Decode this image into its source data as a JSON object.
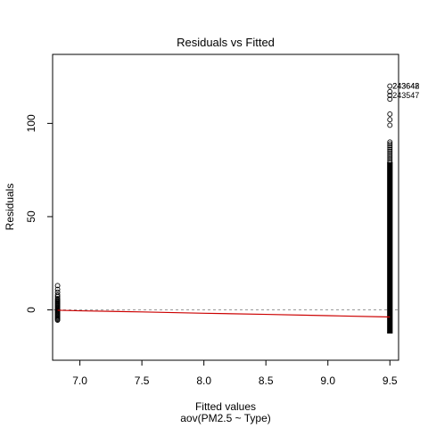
{
  "chart_data": {
    "type": "scatter",
    "title": "Residuals vs Fitted",
    "xlabel": "Fitted values",
    "sublabel": "aov(PM2.5 ~ Type)",
    "ylabel": "Residuals",
    "xlim": [
      6.78,
      9.57
    ],
    "ylim": [
      -27,
      137
    ],
    "x_ticks": [
      7.0,
      7.5,
      8.0,
      8.5,
      9.0,
      9.5
    ],
    "x_tick_labels": [
      "7.0",
      "7.5",
      "8.0",
      "8.5",
      "9.0",
      "9.5"
    ],
    "y_ticks": [
      0,
      50,
      100
    ],
    "y_tick_labels": [
      "0",
      "50",
      "100"
    ],
    "reference_line_y": 0,
    "groups": [
      {
        "fitted": 6.82,
        "residuals": [
          -5.5,
          -5,
          -4.5,
          -4,
          -3.5,
          -3,
          -2.5,
          -2,
          -1.5,
          -1,
          -0.5,
          0,
          0.5,
          1,
          1.5,
          2,
          2.5,
          3,
          3.5,
          4,
          4.5,
          5,
          5.5,
          6,
          7,
          8,
          9.5,
          11,
          13
        ]
      },
      {
        "fitted": 9.5,
        "residual_band": [
          -11.5,
          78
        ],
        "residuals": [
          79,
          80,
          81,
          82,
          83,
          84,
          85,
          86,
          87,
          88,
          89,
          90,
          99,
          102,
          105,
          113,
          115,
          117,
          120
        ]
      }
    ],
    "smoother": {
      "x": [
        6.82,
        7.0,
        7.5,
        8.0,
        8.5,
        9.0,
        9.5
      ],
      "y": [
        -0.2,
        -0.5,
        -1.1,
        -1.8,
        -2.4,
        -3.1,
        -3.8
      ]
    },
    "labeled_points": [
      {
        "label": "243648",
        "x": 9.5,
        "y": 120
      },
      {
        "label": "243642",
        "x": 9.5,
        "y": 120
      },
      {
        "label": "243547",
        "x": 9.5,
        "y": 115
      }
    ]
  }
}
